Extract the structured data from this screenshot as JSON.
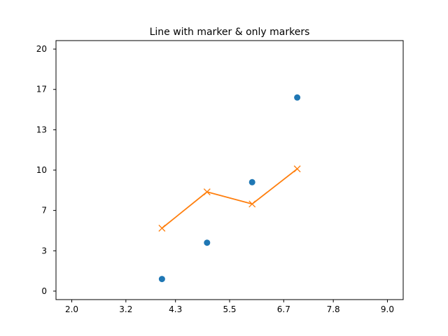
{
  "chart_data": {
    "type": "line",
    "title": "Line with marker & only markers",
    "xlabel": "",
    "ylabel": "",
    "xlim": [
      1.65,
      9.35
    ],
    "ylim": [
      -0.7,
      20.7
    ],
    "x_ticks": [
      "2.0",
      "3.2",
      "4.3",
      "5.5",
      "6.7",
      "7.8",
      "9.0"
    ],
    "y_ticks": [
      "0",
      "3",
      "7",
      "10",
      "13",
      "17",
      "20"
    ],
    "grid": false,
    "legend": "none",
    "series": [
      {
        "style": "markers-only",
        "marker": "circle",
        "color": "#1f77b4",
        "x": [
          4,
          5,
          6,
          7
        ],
        "y": [
          1,
          4,
          9,
          16
        ]
      },
      {
        "style": "line-with-markers",
        "marker": "x",
        "color": "#ff7f0e",
        "x": [
          4,
          5,
          6,
          7
        ],
        "y": [
          5.2,
          8.2,
          7.2,
          10.1
        ]
      }
    ]
  }
}
